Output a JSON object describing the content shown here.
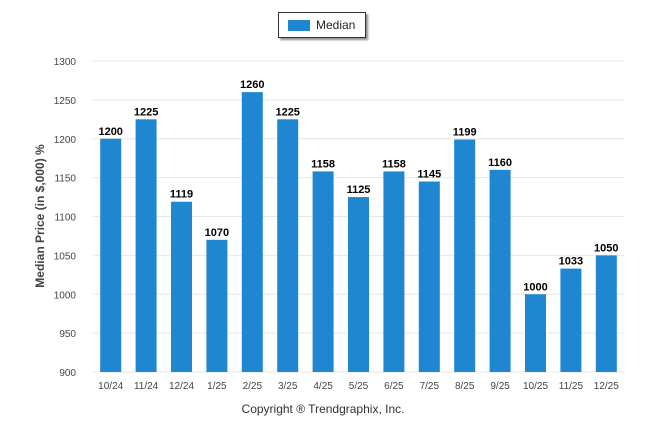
{
  "colors": {
    "bar": "#1f86d1",
    "grid": "#e6e6e6",
    "axis_text": "#444444",
    "label_text": "#000000"
  },
  "legend": {
    "label": "Median"
  },
  "footer": {
    "copyright": "Copyright ® Trendgraphix, Inc."
  },
  "chart_data": {
    "type": "bar",
    "ylabel": "Median Price (in $,000) %",
    "xlabel": "",
    "ylim": [
      900,
      1300
    ],
    "yticks": [
      900,
      950,
      1000,
      1050,
      1100,
      1150,
      1200,
      1250,
      1300
    ],
    "grid": true,
    "legend_position": "top-center",
    "categories": [
      "10/24",
      "11/24",
      "12/24",
      "1/25",
      "2/25",
      "3/25",
      "4/25",
      "5/25",
      "6/25",
      "7/25",
      "8/25",
      "9/25",
      "10/25",
      "11/25",
      "12/25"
    ],
    "series": [
      {
        "name": "Median",
        "values": [
          1200,
          1225,
          1119,
          1070,
          1260,
          1225,
          1158,
          1125,
          1158,
          1145,
          1199,
          1160,
          1000,
          1033,
          1050
        ]
      }
    ]
  }
}
